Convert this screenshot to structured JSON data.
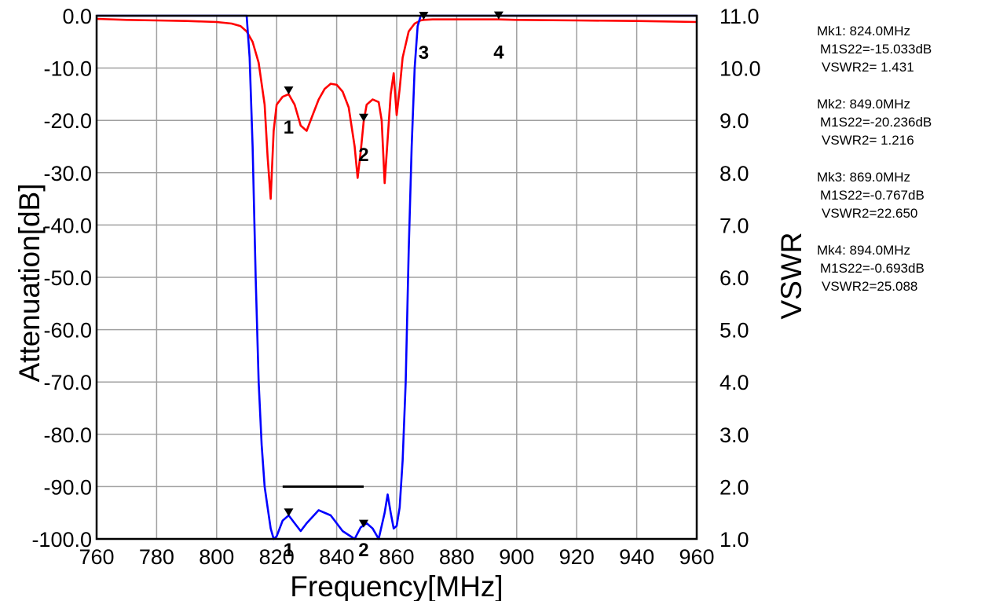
{
  "chart_data": {
    "type": "line",
    "title": "",
    "xlabel": "Frequency[MHz]",
    "ylabel": "Attenuation[dB]",
    "y2label": "VSWR",
    "xlim": [
      760,
      960
    ],
    "ylim": [
      -100,
      0
    ],
    "y2lim": [
      1,
      11
    ],
    "grid": true,
    "x_ticks": [
      "760",
      "780",
      "800",
      "820",
      "840",
      "860",
      "880",
      "900",
      "920",
      "940",
      "960"
    ],
    "y_ticks": [
      "0.0",
      "-10.0",
      "-20.0",
      "-30.0",
      "-40.0",
      "-50.0",
      "-60.0",
      "-70.0",
      "-80.0",
      "-90.0",
      "-100.0"
    ],
    "y2_ticks": [
      "11.0",
      "10.0",
      "9.0",
      "8.0",
      "7.0",
      "6.0",
      "5.0",
      "4.0",
      "3.0",
      "2.0",
      "1.0"
    ],
    "series": [
      {
        "color": "#ff0000",
        "axis": "left",
        "x": [
          760,
          770,
          780,
          790,
          800,
          805,
          808,
          810,
          812,
          814,
          816,
          817,
          818,
          819,
          820,
          822,
          824,
          826,
          828,
          830,
          832,
          834,
          836,
          838,
          840,
          842,
          844,
          846,
          847,
          848,
          849,
          850,
          852,
          854,
          855,
          856,
          858,
          859,
          860,
          861,
          862,
          864,
          866,
          868,
          869,
          872,
          880,
          894,
          900,
          920,
          940,
          960
        ],
        "values": [
          -0.6,
          -0.8,
          -0.9,
          -1.0,
          -1.2,
          -1.5,
          -2.0,
          -3.0,
          -5.0,
          -9.0,
          -17.0,
          -27.0,
          -35.0,
          -22.0,
          -17.0,
          -15.5,
          -15.0,
          -17.0,
          -21.0,
          -22.0,
          -19.0,
          -16.0,
          -14.0,
          -13.0,
          -13.2,
          -14.5,
          -17.5,
          -25.0,
          -31.0,
          -26.0,
          -20.2,
          -17.0,
          -16.0,
          -16.5,
          -20.0,
          -32.0,
          -15.0,
          -11.0,
          -19.0,
          -14.0,
          -8.0,
          -3.0,
          -1.5,
          -0.9,
          -0.8,
          -0.7,
          -0.7,
          -0.7,
          -0.8,
          -0.9,
          -1.0,
          -1.2
        ]
      },
      {
        "color": "#0000ff",
        "axis": "right",
        "x": [
          760,
          780,
          800,
          810,
          811,
          812,
          813,
          814,
          815,
          816,
          817,
          818,
          819,
          820,
          822,
          824,
          826,
          828,
          830,
          834,
          838,
          842,
          846,
          848,
          850,
          852,
          854,
          856,
          857,
          858,
          859,
          860,
          861,
          862,
          863,
          864,
          865,
          866,
          867,
          868,
          869,
          870,
          880,
          900,
          920,
          940,
          960
        ],
        "values": [
          11.0,
          11.0,
          11.0,
          11.0,
          10.2,
          8.5,
          6.0,
          4.0,
          2.8,
          2.0,
          1.6,
          1.2,
          1.0,
          1.05,
          1.35,
          1.45,
          1.3,
          1.15,
          1.3,
          1.55,
          1.45,
          1.15,
          1.0,
          1.22,
          1.3,
          1.2,
          1.0,
          1.5,
          1.85,
          1.5,
          1.2,
          1.25,
          1.6,
          2.5,
          4.0,
          6.5,
          8.5,
          10.0,
          10.8,
          11.0,
          11.0,
          11.0,
          11.0,
          11.0,
          11.0,
          11.0,
          11.0
        ]
      }
    ],
    "markers": [
      {
        "id": "1",
        "x": 824,
        "y_db": -15.033,
        "vswr": 1.431
      },
      {
        "id": "2",
        "x": 849,
        "y_db": -20.236,
        "vswr": 1.216
      },
      {
        "id": "3",
        "x": 869,
        "y_db": -0.767,
        "vswr": 22.65
      },
      {
        "id": "4",
        "x": 894,
        "y_db": -0.693,
        "vswr": 25.088
      }
    ],
    "passband_line": {
      "x": [
        822,
        849
      ],
      "y2": 2.0
    },
    "marker_readout": [
      [
        "Mk1:  824.0MHz",
        "M1S22=-15.033dB",
        "VSWR2= 1.431"
      ],
      [
        "Mk2:  849.0MHz",
        "M1S22=-20.236dB",
        "VSWR2= 1.216"
      ],
      [
        "Mk3:  869.0MHz",
        "M1S22=-0.767dB",
        "VSWR2=22.650"
      ],
      [
        "Mk4:  894.0MHz",
        "M1S22=-0.693dB",
        "VSWR2=25.088"
      ]
    ]
  }
}
